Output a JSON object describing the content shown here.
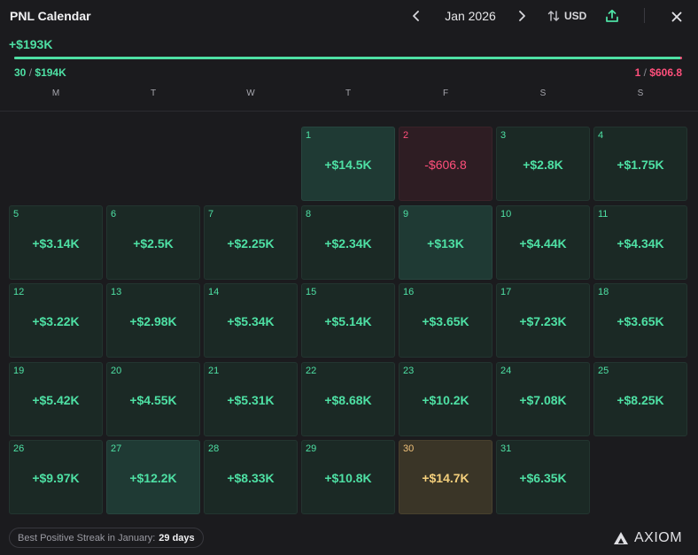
{
  "header": {
    "title": "PNL Calendar",
    "month": "Jan 2026",
    "currency": "USD"
  },
  "summary": {
    "total": "+$193K",
    "win_days": "30",
    "win_total": "$194K",
    "loss_days": "1",
    "loss_total": "$606.8",
    "sep": "/",
    "win_fraction": 0.997
  },
  "weekdays": [
    "M",
    "T",
    "W",
    "T",
    "F",
    "S",
    "S"
  ],
  "days": [
    {
      "day": "1",
      "value": "+$14.5K",
      "variant": "light"
    },
    {
      "day": "2",
      "value": "-$606.8",
      "variant": "loss"
    },
    {
      "day": "3",
      "value": "+$2.8K",
      "variant": ""
    },
    {
      "day": "4",
      "value": "+$1.75K",
      "variant": ""
    },
    {
      "day": "5",
      "value": "+$3.14K",
      "variant": ""
    },
    {
      "day": "6",
      "value": "+$2.5K",
      "variant": ""
    },
    {
      "day": "7",
      "value": "+$2.25K",
      "variant": ""
    },
    {
      "day": "8",
      "value": "+$2.34K",
      "variant": ""
    },
    {
      "day": "9",
      "value": "+$13K",
      "variant": "light"
    },
    {
      "day": "10",
      "value": "+$4.44K",
      "variant": ""
    },
    {
      "day": "11",
      "value": "+$4.34K",
      "variant": ""
    },
    {
      "day": "12",
      "value": "+$3.22K",
      "variant": ""
    },
    {
      "day": "13",
      "value": "+$2.98K",
      "variant": ""
    },
    {
      "day": "14",
      "value": "+$5.34K",
      "variant": ""
    },
    {
      "day": "15",
      "value": "+$5.14K",
      "variant": ""
    },
    {
      "day": "16",
      "value": "+$3.65K",
      "variant": ""
    },
    {
      "day": "17",
      "value": "+$7.23K",
      "variant": ""
    },
    {
      "day": "18",
      "value": "+$3.65K",
      "variant": ""
    },
    {
      "day": "19",
      "value": "+$5.42K",
      "variant": ""
    },
    {
      "day": "20",
      "value": "+$4.55K",
      "variant": ""
    },
    {
      "day": "21",
      "value": "+$5.31K",
      "variant": ""
    },
    {
      "day": "22",
      "value": "+$8.68K",
      "variant": ""
    },
    {
      "day": "23",
      "value": "+$10.2K",
      "variant": ""
    },
    {
      "day": "24",
      "value": "+$7.08K",
      "variant": ""
    },
    {
      "day": "25",
      "value": "+$8.25K",
      "variant": ""
    },
    {
      "day": "26",
      "value": "+$9.97K",
      "variant": ""
    },
    {
      "day": "27",
      "value": "+$12.2K",
      "variant": "light"
    },
    {
      "day": "28",
      "value": "+$8.33K",
      "variant": ""
    },
    {
      "day": "29",
      "value": "+$10.8K",
      "variant": ""
    },
    {
      "day": "30",
      "value": "+$14.7K",
      "variant": "best"
    },
    {
      "day": "31",
      "value": "+$6.35K",
      "variant": ""
    }
  ],
  "footer": {
    "streak_label": "Best Positive Streak in January:",
    "streak_value": "29 days",
    "brand": "AXIOM"
  },
  "colors": {
    "positive": "#4ee0a4",
    "negative": "#ff4f7b",
    "best": "#f5d07c",
    "background": "#1b1b1e"
  },
  "icons": {
    "prev": "chevron-left-icon",
    "next": "chevron-right-icon",
    "sort": "sort-arrows-icon",
    "share": "share-upload-icon",
    "close": "close-icon",
    "brand": "axiom-logo-icon"
  }
}
